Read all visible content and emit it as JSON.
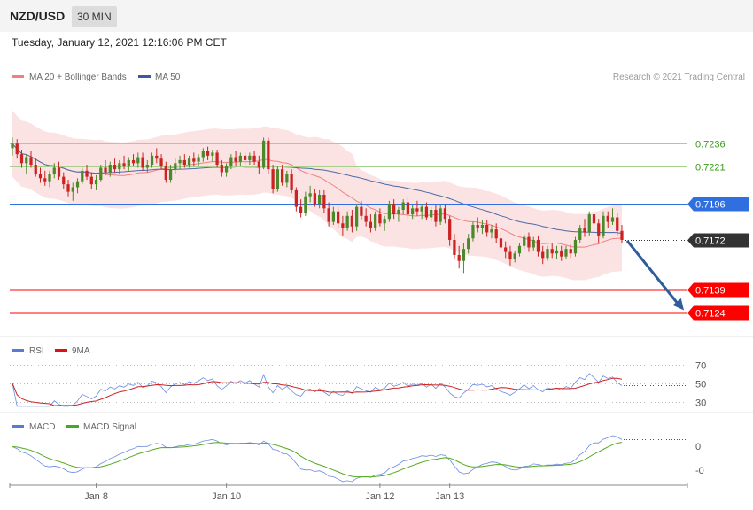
{
  "header": {
    "pair": "NZD/USD",
    "timeframe": "30 MIN",
    "datetime": "Tuesday, January 12, 2021 12:16:06 PM CET"
  },
  "legend": {
    "ma20": "MA 20 + Bollinger Bands",
    "ma50": "MA 50",
    "credit": "Research © 2021 Trading Central",
    "rsi": "RSI",
    "rsi_ma": "9MA",
    "macd": "MACD",
    "macd_signal": "MACD Signal"
  },
  "colors": {
    "up": "#4a8a2a",
    "down": "#cc2222",
    "band": "#fbd9d9",
    "ma20": "#f08080",
    "ma50": "#4a6aa8",
    "support": "#ff0000",
    "pivot": "#2f6fe0",
    "resistance_line": "#a8d08d",
    "resistance_text": "#3a9a1a",
    "current": "#333333",
    "arrow": "#2e5d9a",
    "rsi": "#6a8be0",
    "rsi_ma": "#cc2222",
    "macd": "#6a8be0",
    "macd_signal": "#55aa22"
  },
  "chart_data": [
    {
      "type": "candlestick",
      "series": [
        {
          "name": "MA 20 + Bollinger Bands"
        },
        {
          "name": "MA 50"
        }
      ],
      "ylim": [
        0.7109,
        0.7275
      ],
      "candles": [
        [
          0.7233,
          0.724,
          0.7228,
          0.7236
        ],
        [
          0.7236,
          0.7239,
          0.7226,
          0.7229
        ],
        [
          0.7229,
          0.7232,
          0.722,
          0.7223
        ],
        [
          0.7223,
          0.7229,
          0.7216,
          0.7227
        ],
        [
          0.7227,
          0.7231,
          0.722,
          0.7222
        ],
        [
          0.7222,
          0.7226,
          0.7214,
          0.7216
        ],
        [
          0.7216,
          0.722,
          0.721,
          0.7213
        ],
        [
          0.7213,
          0.7218,
          0.7208,
          0.7211
        ],
        [
          0.7211,
          0.7218,
          0.7207,
          0.7216
        ],
        [
          0.7216,
          0.7223,
          0.7213,
          0.722
        ],
        [
          0.722,
          0.7224,
          0.7212,
          0.7214
        ],
        [
          0.7214,
          0.7217,
          0.7206,
          0.7209
        ],
        [
          0.7209,
          0.7212,
          0.7201,
          0.7204
        ],
        [
          0.7204,
          0.721,
          0.7198,
          0.7207
        ],
        [
          0.7207,
          0.7213,
          0.7203,
          0.7211
        ],
        [
          0.7211,
          0.722,
          0.7209,
          0.7218
        ],
        [
          0.7218,
          0.7222,
          0.7212,
          0.7214
        ],
        [
          0.7214,
          0.7217,
          0.7206,
          0.7209
        ],
        [
          0.7209,
          0.7215,
          0.7205,
          0.7212
        ],
        [
          0.7212,
          0.7222,
          0.7211,
          0.722
        ],
        [
          0.722,
          0.7225,
          0.7215,
          0.7217
        ],
        [
          0.7217,
          0.7224,
          0.7214,
          0.7222
        ],
        [
          0.7222,
          0.7226,
          0.7217,
          0.7219
        ],
        [
          0.7219,
          0.7225,
          0.7216,
          0.7223
        ],
        [
          0.7223,
          0.7228,
          0.7219,
          0.7221
        ],
        [
          0.7221,
          0.7227,
          0.7218,
          0.7225
        ],
        [
          0.7225,
          0.7229,
          0.7221,
          0.7223
        ],
        [
          0.7223,
          0.723,
          0.722,
          0.7227
        ],
        [
          0.7227,
          0.723,
          0.7218,
          0.722
        ],
        [
          0.722,
          0.7225,
          0.7217,
          0.7222
        ],
        [
          0.7222,
          0.723,
          0.722,
          0.7228
        ],
        [
          0.7228,
          0.7233,
          0.7223,
          0.7226
        ],
        [
          0.7226,
          0.7229,
          0.7219,
          0.7221
        ],
        [
          0.7221,
          0.7224,
          0.721,
          0.7212
        ],
        [
          0.7212,
          0.7222,
          0.721,
          0.7219
        ],
        [
          0.7219,
          0.7226,
          0.7216,
          0.7223
        ],
        [
          0.7223,
          0.7228,
          0.7219,
          0.7225
        ],
        [
          0.7225,
          0.7229,
          0.722,
          0.7222
        ],
        [
          0.7222,
          0.7228,
          0.722,
          0.7226
        ],
        [
          0.7226,
          0.723,
          0.7221,
          0.7224
        ],
        [
          0.7224,
          0.7229,
          0.7221,
          0.7227
        ],
        [
          0.7227,
          0.7233,
          0.7224,
          0.7231
        ],
        [
          0.7231,
          0.7234,
          0.7225,
          0.7228
        ],
        [
          0.7228,
          0.7232,
          0.7224,
          0.723
        ],
        [
          0.723,
          0.7232,
          0.722,
          0.7222
        ],
        [
          0.7222,
          0.7225,
          0.7214,
          0.7217
        ],
        [
          0.7217,
          0.7223,
          0.7214,
          0.7221
        ],
        [
          0.7221,
          0.7229,
          0.7219,
          0.7227
        ],
        [
          0.7227,
          0.7231,
          0.7221,
          0.7224
        ],
        [
          0.7224,
          0.723,
          0.7221,
          0.7228
        ],
        [
          0.7228,
          0.7231,
          0.7222,
          0.7225
        ],
        [
          0.7225,
          0.723,
          0.7222,
          0.7228
        ],
        [
          0.7228,
          0.7231,
          0.7222,
          0.7224
        ],
        [
          0.7224,
          0.7228,
          0.7216,
          0.722
        ],
        [
          0.722,
          0.724,
          0.7219,
          0.7238
        ],
        [
          0.7238,
          0.724,
          0.7216,
          0.7219
        ],
        [
          0.7219,
          0.7222,
          0.7203,
          0.7206
        ],
        [
          0.7206,
          0.7221,
          0.7204,
          0.7219
        ],
        [
          0.7219,
          0.7222,
          0.7208,
          0.721
        ],
        [
          0.721,
          0.7218,
          0.7207,
          0.7216
        ],
        [
          0.7216,
          0.7219,
          0.7203,
          0.7205
        ],
        [
          0.7205,
          0.7207,
          0.7191,
          0.7194
        ],
        [
          0.7194,
          0.7199,
          0.7187,
          0.719
        ],
        [
          0.719,
          0.7204,
          0.7188,
          0.7201
        ],
        [
          0.7201,
          0.7208,
          0.7197,
          0.7203
        ],
        [
          0.7203,
          0.7206,
          0.7194,
          0.7196
        ],
        [
          0.7196,
          0.7205,
          0.7193,
          0.7202
        ],
        [
          0.7202,
          0.7205,
          0.719,
          0.7193
        ],
        [
          0.7193,
          0.7197,
          0.7181,
          0.7184
        ],
        [
          0.7184,
          0.7194,
          0.7182,
          0.7191
        ],
        [
          0.7191,
          0.7194,
          0.718,
          0.7183
        ],
        [
          0.7183,
          0.7188,
          0.7175,
          0.718
        ],
        [
          0.718,
          0.7191,
          0.7178,
          0.7188
        ],
        [
          0.7188,
          0.7192,
          0.7177,
          0.7181
        ],
        [
          0.7181,
          0.7196,
          0.7178,
          0.7194
        ],
        [
          0.7194,
          0.7198,
          0.7185,
          0.7188
        ],
        [
          0.7188,
          0.7193,
          0.7181,
          0.7184
        ],
        [
          0.7184,
          0.7189,
          0.7177,
          0.718
        ],
        [
          0.718,
          0.7191,
          0.7178,
          0.7189
        ],
        [
          0.7189,
          0.7193,
          0.7181,
          0.7183
        ],
        [
          0.7183,
          0.7188,
          0.7178,
          0.7186
        ],
        [
          0.7186,
          0.7198,
          0.7184,
          0.7196
        ],
        [
          0.7196,
          0.7199,
          0.7186,
          0.7189
        ],
        [
          0.7189,
          0.7194,
          0.7184,
          0.7192
        ],
        [
          0.7192,
          0.7199,
          0.7189,
          0.7197
        ],
        [
          0.7197,
          0.72,
          0.7186,
          0.7189
        ],
        [
          0.7189,
          0.7195,
          0.7186,
          0.7193
        ],
        [
          0.7193,
          0.7198,
          0.7188,
          0.7191
        ],
        [
          0.7191,
          0.7196,
          0.7186,
          0.7194
        ],
        [
          0.7194,
          0.7197,
          0.7185,
          0.7187
        ],
        [
          0.7187,
          0.7194,
          0.7184,
          0.7192
        ],
        [
          0.7192,
          0.7195,
          0.7181,
          0.7184
        ],
        [
          0.7184,
          0.7195,
          0.7182,
          0.7193
        ],
        [
          0.7193,
          0.7196,
          0.7183,
          0.7186
        ],
        [
          0.7186,
          0.7188,
          0.7168,
          0.7172
        ],
        [
          0.7172,
          0.7176,
          0.7159,
          0.7162
        ],
        [
          0.7162,
          0.7168,
          0.7153,
          0.7158
        ],
        [
          0.7158,
          0.717,
          0.715,
          0.7166
        ],
        [
          0.7166,
          0.7176,
          0.7163,
          0.7173
        ],
        [
          0.7173,
          0.7184,
          0.7171,
          0.7182
        ],
        [
          0.7182,
          0.7187,
          0.7177,
          0.718
        ],
        [
          0.718,
          0.7185,
          0.7176,
          0.7182
        ],
        [
          0.7182,
          0.7185,
          0.7174,
          0.7177
        ],
        [
          0.7177,
          0.7182,
          0.7173,
          0.7179
        ],
        [
          0.7179,
          0.7183,
          0.717,
          0.7173
        ],
        [
          0.7173,
          0.7177,
          0.7164,
          0.7167
        ],
        [
          0.7167,
          0.7171,
          0.716,
          0.7164
        ],
        [
          0.7164,
          0.7168,
          0.7155,
          0.7159
        ],
        [
          0.7159,
          0.7165,
          0.7157,
          0.7163
        ],
        [
          0.7163,
          0.717,
          0.7161,
          0.7168
        ],
        [
          0.7168,
          0.7176,
          0.7166,
          0.7174
        ],
        [
          0.7174,
          0.7177,
          0.7164,
          0.7167
        ],
        [
          0.7167,
          0.7174,
          0.7165,
          0.7172
        ],
        [
          0.7172,
          0.7175,
          0.7161,
          0.7164
        ],
        [
          0.7164,
          0.7168,
          0.7156,
          0.716
        ],
        [
          0.716,
          0.7168,
          0.7158,
          0.7166
        ],
        [
          0.7166,
          0.717,
          0.716,
          0.7163
        ],
        [
          0.7163,
          0.7168,
          0.7159,
          0.7165
        ],
        [
          0.7165,
          0.7168,
          0.7158,
          0.7161
        ],
        [
          0.7161,
          0.7168,
          0.7159,
          0.7166
        ],
        [
          0.7166,
          0.7169,
          0.716,
          0.7163
        ],
        [
          0.7163,
          0.7174,
          0.7161,
          0.7172
        ],
        [
          0.7172,
          0.7182,
          0.717,
          0.718
        ],
        [
          0.718,
          0.7186,
          0.7174,
          0.7177
        ],
        [
          0.7177,
          0.7191,
          0.7175,
          0.7189
        ],
        [
          0.7189,
          0.7195,
          0.718,
          0.7183
        ],
        [
          0.7183,
          0.7186,
          0.717,
          0.7175
        ],
        [
          0.7175,
          0.7191,
          0.7173,
          0.7188
        ],
        [
          0.7188,
          0.7191,
          0.718,
          0.7184
        ],
        [
          0.7184,
          0.7193,
          0.7182,
          0.7187
        ],
        [
          0.7187,
          0.719,
          0.7175,
          0.7178
        ],
        [
          0.7178,
          0.7182,
          0.717,
          0.7172
        ]
      ],
      "levels": [
        {
          "value": 0.7236,
          "label": "0.7236",
          "kind": "resistance"
        },
        {
          "value": 0.7221,
          "label": "0.7221",
          "kind": "resistance"
        },
        {
          "value": 0.7196,
          "label": "0.7196",
          "kind": "pivot"
        },
        {
          "value": 0.7172,
          "label": "0.7172",
          "kind": "current"
        },
        {
          "value": 0.7139,
          "label": "0.7139",
          "kind": "support"
        },
        {
          "value": 0.7124,
          "label": "0.7124",
          "kind": "support"
        }
      ],
      "x_ticks": [
        {
          "index": 18,
          "label": "Jan 8"
        },
        {
          "index": 46,
          "label": "Jan 10"
        },
        {
          "index": 79,
          "label": "Jan 12"
        },
        {
          "index": 94,
          "label": "Jan 13"
        }
      ]
    },
    {
      "type": "line",
      "series": [
        {
          "name": "RSI"
        },
        {
          "name": "9MA"
        }
      ],
      "ylim": [
        20,
        80
      ],
      "y_ticks": [
        70,
        50,
        30
      ]
    },
    {
      "type": "line",
      "series": [
        {
          "name": "MACD"
        },
        {
          "name": "MACD Signal"
        }
      ],
      "y_ticks": [
        "0",
        "-0"
      ]
    }
  ]
}
